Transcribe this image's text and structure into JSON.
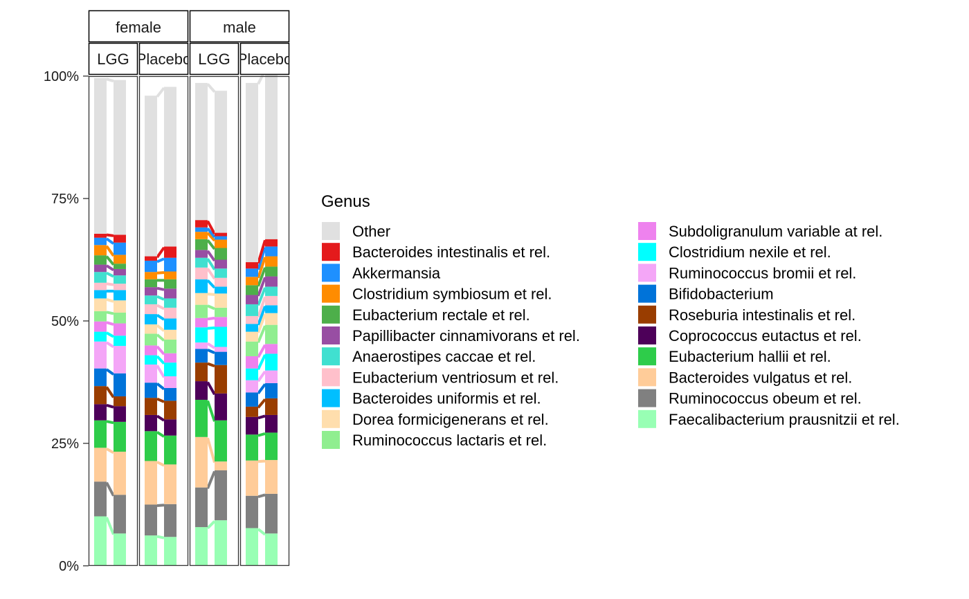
{
  "chart_data": {
    "type": "bar",
    "subtype": "stacked-percent-with-flows",
    "legend_title": "Genus",
    "legend_position": "right",
    "grid": false,
    "y_ticks": [
      "0%",
      "25%",
      "50%",
      "75%",
      "100%"
    ],
    "ylim": [
      0,
      100
    ],
    "facets": {
      "sex": [
        "female",
        "male"
      ],
      "treatment": [
        "LGG",
        "Placebo"
      ]
    },
    "panel_order": [
      {
        "sex": "female",
        "treatment": "LGG"
      },
      {
        "sex": "female",
        "treatment": "Placebo"
      },
      {
        "sex": "male",
        "treatment": "LGG"
      },
      {
        "sex": "male",
        "treatment": "Placebo"
      }
    ],
    "stack_order": [
      "Faecalibacterium prausnitzii et rel.",
      "Ruminococcus obeum et rel.",
      "Bacteroides vulgatus et rel.",
      "Eubacterium hallii et rel.",
      "Coprococcus eutactus et rel.",
      "Roseburia intestinalis et rel.",
      "Bifidobacterium",
      "Ruminococcus bromii et rel.",
      "Clostridium nexile et rel.",
      "Subdoligranulum variable at rel.",
      "Ruminococcus lactaris et rel.",
      "Dorea formicigenerans et rel.",
      "Bacteroides uniformis et rel.",
      "Eubacterium ventriosum et rel.",
      "Anaerostipes caccae et rel.",
      "Papillibacter cinnamivorans et rel.",
      "Eubacterium rectale et rel.",
      "Clostridium symbiosum et rel.",
      "Akkermansia",
      "Bacteroides intestinalis et rel.",
      "Other"
    ],
    "legend_columns": [
      [
        "Other",
        "Bacteroides intestinalis et rel.",
        "Akkermansia",
        "Clostridium symbiosum et rel.",
        "Eubacterium rectale et rel.",
        "Papillibacter cinnamivorans et rel.",
        "Anaerostipes caccae et rel.",
        "Eubacterium ventriosum et rel.",
        "Bacteroides uniformis et rel.",
        "Dorea formicigenerans et rel.",
        "Ruminococcus lactaris et rel."
      ],
      [
        "Subdoligranulum variable at rel.",
        "Clostridium nexile et rel.",
        "Ruminococcus bromii et rel.",
        "Bifidobacterium",
        "Roseburia intestinalis et rel.",
        "Coprococcus eutactus et rel.",
        "Eubacterium hallii et rel.",
        "Bacteroides vulgatus et rel.",
        "Ruminococcus obeum et rel.",
        "Faecalibacterium prausnitzii et rel."
      ]
    ],
    "colors": {
      "Other": "#e0e0e0",
      "Bacteroides intestinalis et rel.": "#e41a1c",
      "Akkermansia": "#1e90ff",
      "Clostridium symbiosum et rel.": "#ff8c00",
      "Eubacterium rectale et rel.": "#4daf4a",
      "Papillibacter cinnamivorans et rel.": "#984ea3",
      "Anaerostipes caccae et rel.": "#40e0d0",
      "Eubacterium ventriosum et rel.": "#ffc0cb",
      "Bacteroides uniformis et rel.": "#00bfff",
      "Dorea formicigenerans et rel.": "#ffdead",
      "Ruminococcus lactaris et rel.": "#90ee90",
      "Subdoligranulum variable at rel.": "#ee82ee",
      "Clostridium nexile et rel.": "#00ffff",
      "Ruminococcus bromii et rel.": "#f4a6f7",
      "Bifidobacterium": "#0073d9",
      "Roseburia intestinalis et rel.": "#993d00",
      "Coprococcus eutactus et rel.": "#4d0059",
      "Eubacterium hallii et rel.": "#2ecc4a",
      "Bacteroides vulgatus et rel.": "#ffcc99",
      "Ruminococcus obeum et rel.": "#808080",
      "Faecalibacterium prausnitzii et rel.": "#98ffb4"
    },
    "series": [
      {
        "sex": "female",
        "treatment": "LGG",
        "bar": 1,
        "values": [
          10.1,
          7.1,
          6.9,
          5.6,
          3.3,
          3.7,
          3.6,
          5.5,
          2.0,
          2.1,
          2.1,
          2.6,
          1.7,
          1.5,
          2.2,
          1.5,
          1.9,
          2.1,
          1.5,
          0.8,
          31.8
        ]
      },
      {
        "sex": "female",
        "treatment": "LGG",
        "bar": 2,
        "values": [
          6.6,
          7.9,
          8.8,
          6.1,
          3.2,
          2.0,
          4.7,
          5.6,
          2.1,
          2.5,
          2.2,
          2.5,
          2.1,
          1.3,
          1.7,
          1.3,
          1.1,
          1.8,
          2.5,
          1.6,
          31.6
        ]
      },
      {
        "sex": "female",
        "treatment": "Placebo",
        "bar": 1,
        "values": [
          6.2,
          6.3,
          8.9,
          6.1,
          3.3,
          3.5,
          3.1,
          3.7,
          1.9,
          2.0,
          2.4,
          1.9,
          2.1,
          2.0,
          1.8,
          1.7,
          1.6,
          1.5,
          2.3,
          0.9,
          32.8
        ]
      },
      {
        "sex": "female",
        "treatment": "Placebo",
        "bar": 2,
        "values": [
          5.9,
          6.7,
          8.1,
          5.9,
          3.3,
          3.8,
          2.6,
          2.4,
          2.8,
          1.9,
          2.8,
          2.0,
          2.3,
          2.2,
          1.9,
          2.0,
          1.9,
          1.6,
          2.8,
          2.3,
          32.6
        ]
      },
      {
        "sex": "male",
        "treatment": "LGG",
        "bar": 1,
        "values": [
          7.9,
          8.1,
          10.3,
          7.6,
          3.8,
          3.8,
          2.8,
          1.3,
          3.1,
          1.9,
          2.7,
          2.4,
          2.8,
          2.4,
          2.0,
          1.6,
          2.2,
          1.5,
          0.9,
          1.5,
          28.0
        ]
      },
      {
        "sex": "male",
        "treatment": "LGG",
        "bar": 2,
        "values": [
          9.3,
          10.2,
          1.8,
          8.4,
          5.5,
          5.8,
          2.7,
          1.0,
          4.1,
          2.0,
          1.9,
          2.9,
          1.4,
          1.8,
          1.9,
          1.8,
          2.4,
          1.7,
          0.7,
          0.7,
          29.0
        ]
      },
      {
        "sex": "male",
        "treatment": "Placebo",
        "bar": 1,
        "values": [
          7.7,
          6.6,
          7.2,
          5.3,
          3.6,
          2.1,
          2.9,
          2.5,
          2.4,
          2.5,
          3.0,
          2.0,
          1.6,
          1.6,
          2.4,
          1.9,
          2.0,
          1.7,
          1.7,
          1.3,
          36.6
        ]
      },
      {
        "sex": "male",
        "treatment": "Placebo",
        "bar": 2,
        "values": [
          6.6,
          8.1,
          6.9,
          5.6,
          3.6,
          3.4,
          3.1,
          2.6,
          3.4,
          2.0,
          3.9,
          2.4,
          1.6,
          1.9,
          1.9,
          2.1,
          2.0,
          2.1,
          2.0,
          1.5,
          34.7
        ]
      }
    ]
  }
}
